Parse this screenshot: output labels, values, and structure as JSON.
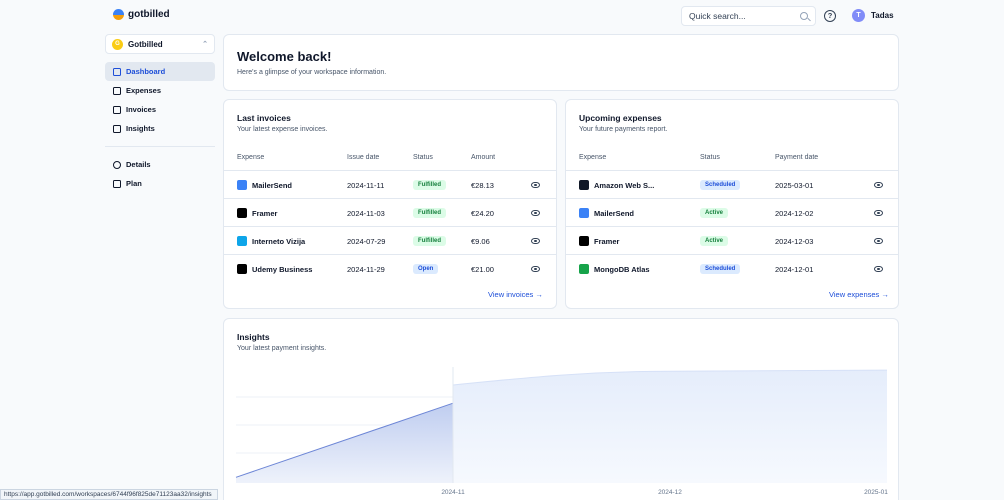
{
  "app": {
    "name": "gotbilled"
  },
  "header": {
    "search_placeholder": "Quick search...",
    "help_label": "?",
    "user_initial": "T",
    "user_name": "Tadas"
  },
  "sidebar": {
    "workspace_initial": "G",
    "workspace_name": "Gotbilled",
    "items": [
      {
        "label": "Dashboard",
        "icon": "grid-icon",
        "active": true
      },
      {
        "label": "Expenses",
        "icon": "wallet-icon"
      },
      {
        "label": "Invoices",
        "icon": "file-icon"
      },
      {
        "label": "Insights",
        "icon": "chart-icon"
      }
    ],
    "items2": [
      {
        "label": "Details",
        "icon": "info-icon"
      },
      {
        "label": "Plan",
        "icon": "calendar-icon"
      }
    ]
  },
  "welcome": {
    "title": "Welcome back!",
    "subtitle": "Here's a glimpse of your workspace information."
  },
  "invoices": {
    "title": "Last invoices",
    "subtitle": "Your latest expense invoices.",
    "columns": [
      "Expense",
      "Issue date",
      "Status",
      "Amount"
    ],
    "rows": [
      {
        "name": "MailerSend",
        "date": "2024-11-11",
        "status": "Fulfilled",
        "amount": "€28.13",
        "logo_color": "#3b82f6"
      },
      {
        "name": "Framer",
        "date": "2024-11-03",
        "status": "Fulfilled",
        "amount": "€24.20",
        "logo_color": "#000000"
      },
      {
        "name": "Interneto Vizija",
        "date": "2024-07-29",
        "status": "Fulfilled",
        "amount": "€9.06",
        "logo_color": "#0ea5e9"
      },
      {
        "name": "Udemy Business",
        "date": "2024-11-29",
        "status": "Open",
        "amount": "€21.00",
        "logo_color": "#000000"
      }
    ],
    "link": "View invoices →"
  },
  "expenses": {
    "title": "Upcoming expenses",
    "subtitle": "Your future payments report.",
    "columns": [
      "Expense",
      "Status",
      "Payment date"
    ],
    "rows": [
      {
        "name": "Amazon Web S...",
        "status": "Scheduled",
        "date": "2025-03-01",
        "logo_color": "#111827"
      },
      {
        "name": "MailerSend",
        "status": "Active",
        "date": "2024-12-02",
        "logo_color": "#3b82f6"
      },
      {
        "name": "Framer",
        "status": "Active",
        "date": "2024-12-03",
        "logo_color": "#000000"
      },
      {
        "name": "MongoDB Atlas",
        "status": "Scheduled",
        "date": "2024-12-01",
        "logo_color": "#16a34a"
      }
    ],
    "link": "View expenses →"
  },
  "insights": {
    "title": "Insights",
    "subtitle": "Your latest payment insights."
  },
  "chart_data": {
    "type": "area",
    "x_ticks": [
      "2024-11",
      "2024-12",
      "2025-01"
    ],
    "grid": true,
    "series": [
      {
        "x": [
          "2024-10",
          "2024-11"
        ],
        "values": [
          0.05,
          0.7
        ]
      },
      {
        "x": [
          "2024-11",
          "2024-12",
          "2025-01"
        ],
        "values": [
          0.86,
          0.98,
          0.99
        ]
      }
    ],
    "colors": {
      "past": "#bfcdf0",
      "future": "#e5edfb"
    }
  },
  "statusbar": {
    "url": "https://app.gotbilled.com/workspaces/6744f96f825de71123aa32/insights"
  }
}
